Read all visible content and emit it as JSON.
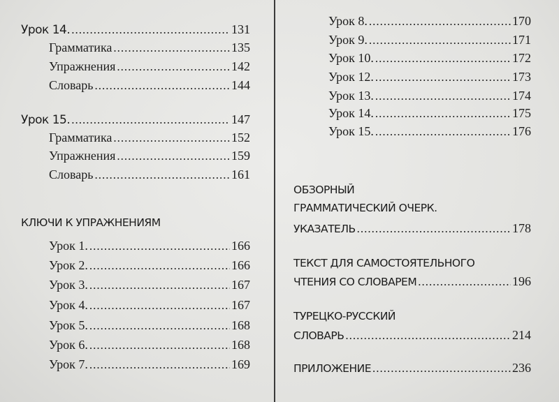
{
  "left": {
    "lesson14": {
      "label": "Урок 14.",
      "page": "131",
      "items": [
        {
          "label": "Грамматика",
          "page": "135"
        },
        {
          "label": "Упражнения",
          "page": "142"
        },
        {
          "label": "Словарь",
          "page": "144"
        }
      ]
    },
    "lesson15": {
      "label": "Урок 15.",
      "page": "147",
      "items": [
        {
          "label": "Грамматика",
          "page": "152"
        },
        {
          "label": "Упражнения",
          "page": "159"
        },
        {
          "label": "Словарь",
          "page": "161"
        }
      ]
    },
    "keys_heading": "КЛЮЧИ К УПРАЖНЕНИЯМ",
    "keys": [
      {
        "label": "Урок 1.",
        "page": "166"
      },
      {
        "label": "Урок 2.",
        "page": "166"
      },
      {
        "label": "Урок 3.",
        "page": "167"
      },
      {
        "label": "Урок 4.",
        "page": "167"
      },
      {
        "label": "Урок 5.",
        "page": "168"
      },
      {
        "label": "Урок 6.",
        "page": "168"
      },
      {
        "label": "Урок 7.",
        "page": "169"
      }
    ]
  },
  "right": {
    "keys": [
      {
        "label": "Урок 8.",
        "page": "170"
      },
      {
        "label": "Урок 9.",
        "page": "171"
      },
      {
        "label": "Урок 10.",
        "page": "172"
      },
      {
        "label": "Урок 12.",
        "page": "173"
      },
      {
        "label": "Урок 13.",
        "page": "174"
      },
      {
        "label": "Урок 14.",
        "page": "175"
      },
      {
        "label": "Урок 15.",
        "page": "176"
      }
    ],
    "overview": {
      "line1": "ОБЗОРНЫЙ",
      "line2": "ГРАММАТИЧЕСКИЙ ОЧЕРК.",
      "line3": "УКАЗАТЕЛЬ",
      "page": "178"
    },
    "reading": {
      "line1": "ТЕКСТ ДЛЯ САМОСТОЯТЕЛЬНОГО",
      "line2": "ЧТЕНИЯ СО СЛОВАРЕМ",
      "page": "196"
    },
    "dictionary": {
      "line1": "ТУРЕЦКО-РУССКИЙ",
      "line2": "СЛОВАРЬ",
      "page": "214"
    },
    "appendix": {
      "label": "ПРИЛОЖЕНИЕ",
      "page": "236"
    }
  }
}
